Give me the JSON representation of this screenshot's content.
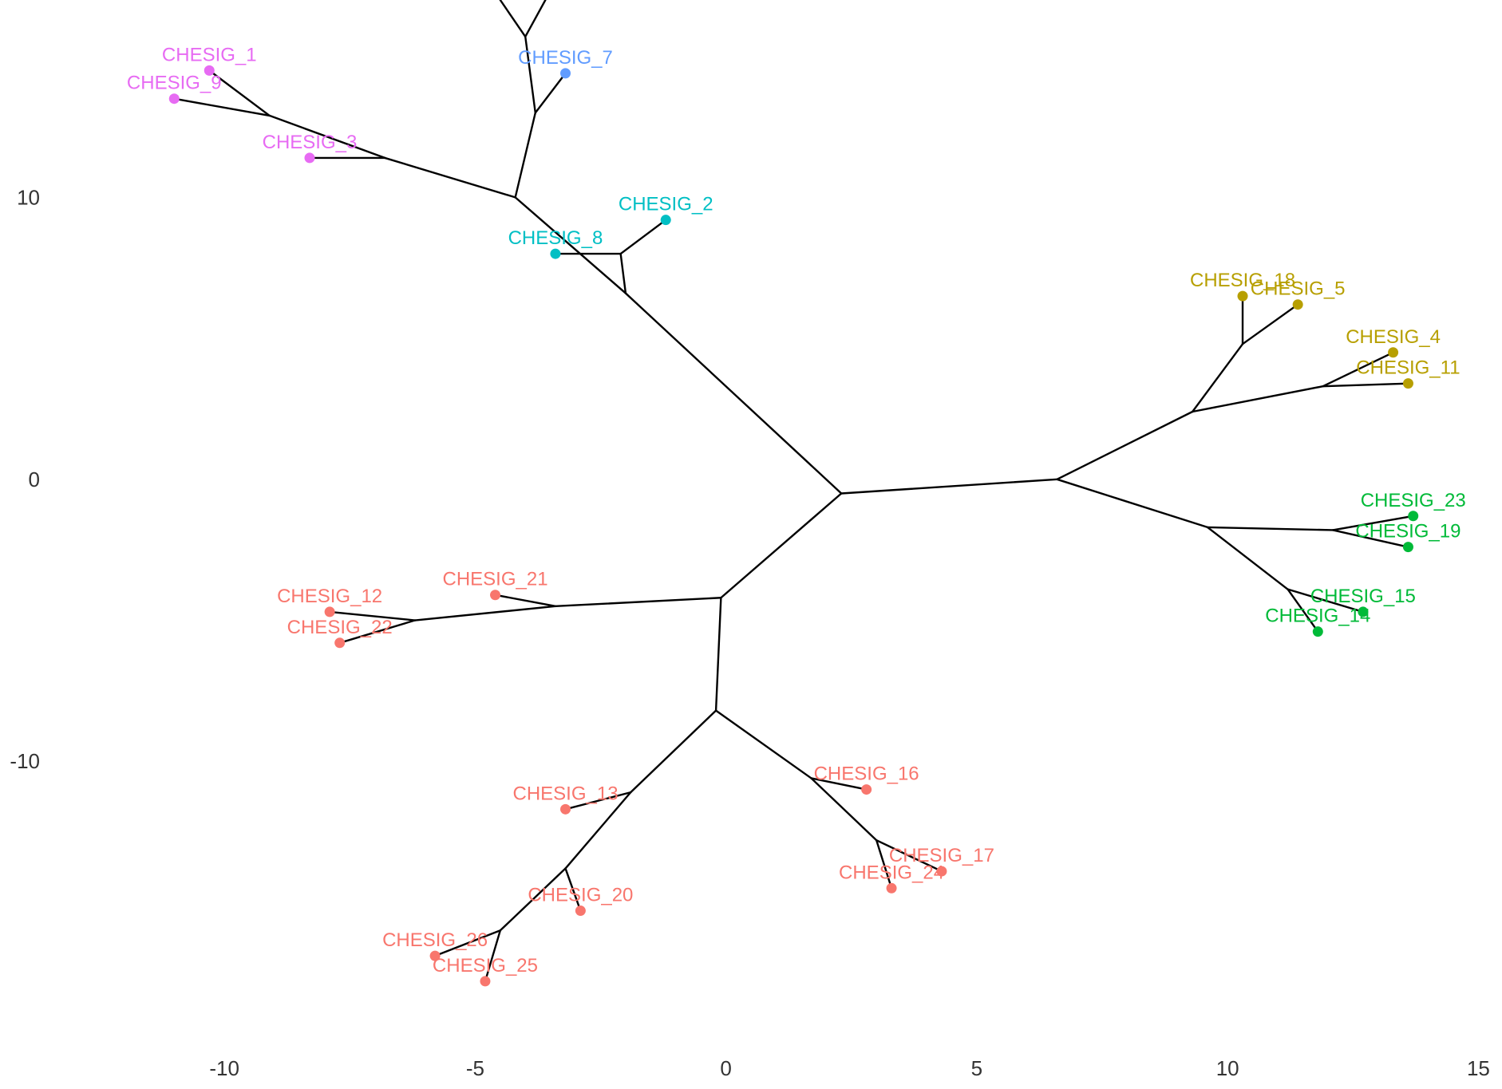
{
  "chart_data": {
    "type": "scatter",
    "subtype": "unrooted-tree",
    "title": "",
    "xlabel": "",
    "ylabel": "",
    "xlim": [
      -13.2,
      15.2
    ],
    "ylim": [
      -19.5,
      17
    ],
    "x_ticks": [
      -10,
      -5,
      0,
      5,
      10,
      15
    ],
    "y_ticks": [
      -10,
      0,
      10
    ],
    "grid": false,
    "legend": "none",
    "colors": {
      "magenta": "#e76bf3",
      "blue": "#619cff",
      "cyan": "#00bfc4",
      "olive": "#b79f00",
      "green": "#00ba38",
      "salmon": "#f8766d"
    },
    "tips": [
      {
        "label": "CHESIG_1",
        "x": -10.3,
        "y": 14.5,
        "color": "magenta"
      },
      {
        "label": "CHESIG_9",
        "x": -11.0,
        "y": 13.5,
        "color": "magenta"
      },
      {
        "label": "CHESIG_3",
        "x": -8.3,
        "y": 11.4,
        "color": "magenta"
      },
      {
        "label": "CHESIG_7",
        "x": -3.2,
        "y": 14.4,
        "color": "blue"
      },
      {
        "label": "CHESIG_2",
        "x": -1.2,
        "y": 9.2,
        "color": "cyan"
      },
      {
        "label": "CHESIG_8",
        "x": -3.4,
        "y": 8.0,
        "color": "cyan"
      },
      {
        "label": "CHESIG_18",
        "x": 10.3,
        "y": 6.5,
        "color": "olive"
      },
      {
        "label": "CHESIG_5",
        "x": 11.4,
        "y": 6.2,
        "color": "olive"
      },
      {
        "label": "CHESIG_4",
        "x": 13.3,
        "y": 4.5,
        "color": "olive"
      },
      {
        "label": "CHESIG_11",
        "x": 13.6,
        "y": 3.4,
        "color": "olive"
      },
      {
        "label": "CHESIG_23",
        "x": 13.7,
        "y": -1.3,
        "color": "green"
      },
      {
        "label": "CHESIG_19",
        "x": 13.6,
        "y": -2.4,
        "color": "green"
      },
      {
        "label": "CHESIG_15",
        "x": 12.7,
        "y": -4.7,
        "color": "green"
      },
      {
        "label": "CHESIG_14",
        "x": 11.8,
        "y": -5.4,
        "color": "green"
      },
      {
        "label": "CHESIG_21",
        "x": -4.6,
        "y": -4.1,
        "color": "salmon"
      },
      {
        "label": "CHESIG_12",
        "x": -7.9,
        "y": -4.7,
        "color": "salmon"
      },
      {
        "label": "CHESIG_22",
        "x": -7.7,
        "y": -5.8,
        "color": "salmon"
      },
      {
        "label": "CHESIG_16",
        "x": 2.8,
        "y": -11.0,
        "color": "salmon"
      },
      {
        "label": "CHESIG_13",
        "x": -3.2,
        "y": -11.7,
        "color": "salmon"
      },
      {
        "label": "CHESIG_17",
        "x": 4.3,
        "y": -13.9,
        "color": "salmon"
      },
      {
        "label": "CHESIG_24",
        "x": 3.3,
        "y": -14.5,
        "color": "salmon"
      },
      {
        "label": "CHESIG_20",
        "x": -2.9,
        "y": -15.3,
        "color": "salmon"
      },
      {
        "label": "CHESIG_26",
        "x": -5.8,
        "y": -16.9,
        "color": "salmon"
      },
      {
        "label": "CHESIG_25",
        "x": -4.8,
        "y": -17.8,
        "color": "salmon"
      }
    ],
    "branches": [
      [
        [
          2.3,
          -0.5
        ],
        [
          6.6,
          0.0
        ]
      ],
      [
        [
          6.6,
          0.0
        ],
        [
          9.3,
          2.4
        ]
      ],
      [
        [
          9.3,
          2.4
        ],
        [
          10.3,
          4.8
        ]
      ],
      [
        [
          10.3,
          4.8
        ],
        [
          10.3,
          6.5
        ]
      ],
      [
        [
          10.3,
          4.8
        ],
        [
          11.4,
          6.2
        ]
      ],
      [
        [
          9.3,
          2.4
        ],
        [
          11.9,
          3.3
        ]
      ],
      [
        [
          11.9,
          3.3
        ],
        [
          13.3,
          4.5
        ]
      ],
      [
        [
          11.9,
          3.3
        ],
        [
          13.6,
          3.4
        ]
      ],
      [
        [
          6.6,
          0.0
        ],
        [
          9.6,
          -1.7
        ]
      ],
      [
        [
          9.6,
          -1.7
        ],
        [
          12.1,
          -1.8
        ]
      ],
      [
        [
          12.1,
          -1.8
        ],
        [
          13.7,
          -1.3
        ]
      ],
      [
        [
          12.1,
          -1.8
        ],
        [
          13.6,
          -2.4
        ]
      ],
      [
        [
          9.6,
          -1.7
        ],
        [
          11.2,
          -3.9
        ]
      ],
      [
        [
          11.2,
          -3.9
        ],
        [
          12.7,
          -4.7
        ]
      ],
      [
        [
          11.2,
          -3.9
        ],
        [
          11.8,
          -5.4
        ]
      ],
      [
        [
          2.3,
          -0.5
        ],
        [
          -0.1,
          -4.2
        ]
      ],
      [
        [
          -0.1,
          -4.2
        ],
        [
          -3.4,
          -4.5
        ]
      ],
      [
        [
          -3.4,
          -4.5
        ],
        [
          -4.6,
          -4.1
        ]
      ],
      [
        [
          -3.4,
          -4.5
        ],
        [
          -6.2,
          -5.0
        ]
      ],
      [
        [
          -6.2,
          -5.0
        ],
        [
          -7.9,
          -4.7
        ]
      ],
      [
        [
          -6.2,
          -5.0
        ],
        [
          -7.7,
          -5.8
        ]
      ],
      [
        [
          -0.1,
          -4.2
        ],
        [
          -0.2,
          -8.2
        ]
      ],
      [
        [
          -0.2,
          -8.2
        ],
        [
          1.7,
          -10.6
        ]
      ],
      [
        [
          1.7,
          -10.6
        ],
        [
          2.8,
          -11.0
        ]
      ],
      [
        [
          1.7,
          -10.6
        ],
        [
          3.0,
          -12.8
        ]
      ],
      [
        [
          3.0,
          -12.8
        ],
        [
          4.3,
          -13.9
        ]
      ],
      [
        [
          3.0,
          -12.8
        ],
        [
          3.3,
          -14.5
        ]
      ],
      [
        [
          -0.2,
          -8.2
        ],
        [
          -1.9,
          -11.1
        ]
      ],
      [
        [
          -1.9,
          -11.1
        ],
        [
          -3.2,
          -11.7
        ]
      ],
      [
        [
          -1.9,
          -11.1
        ],
        [
          -3.2,
          -13.8
        ]
      ],
      [
        [
          -3.2,
          -13.8
        ],
        [
          -2.9,
          -15.3
        ]
      ],
      [
        [
          -3.2,
          -13.8
        ],
        [
          -4.5,
          -16.0
        ]
      ],
      [
        [
          -4.5,
          -16.0
        ],
        [
          -5.8,
          -16.9
        ]
      ],
      [
        [
          -4.5,
          -16.0
        ],
        [
          -4.8,
          -17.8
        ]
      ],
      [
        [
          2.3,
          -0.5
        ],
        [
          -2.0,
          6.6
        ]
      ],
      [
        [
          -2.0,
          6.6
        ],
        [
          -4.2,
          10.0
        ]
      ],
      [
        [
          -4.2,
          10.0
        ],
        [
          -6.8,
          11.4
        ]
      ],
      [
        [
          -6.8,
          11.4
        ],
        [
          -8.3,
          11.4
        ]
      ],
      [
        [
          -6.8,
          11.4
        ],
        [
          -9.1,
          12.9
        ]
      ],
      [
        [
          -9.1,
          12.9
        ],
        [
          -10.3,
          14.5
        ]
      ],
      [
        [
          -9.1,
          12.9
        ],
        [
          -11.0,
          13.5
        ]
      ],
      [
        [
          -4.2,
          10.0
        ],
        [
          -3.8,
          13.0
        ]
      ],
      [
        [
          -3.8,
          13.0
        ],
        [
          -3.2,
          14.4
        ]
      ],
      [
        [
          -3.8,
          13.0
        ],
        [
          -4.0,
          15.7
        ]
      ],
      [
        [
          -4.0,
          15.7
        ],
        [
          -4.5,
          17.0
        ]
      ],
      [
        [
          -4.0,
          15.7
        ],
        [
          -3.6,
          17.0
        ]
      ],
      [
        [
          -2.0,
          6.6
        ],
        [
          -2.1,
          8.0
        ]
      ],
      [
        [
          -2.1,
          8.0
        ],
        [
          -3.4,
          8.0
        ]
      ],
      [
        [
          -2.1,
          8.0
        ],
        [
          -1.2,
          9.2
        ]
      ]
    ]
  }
}
